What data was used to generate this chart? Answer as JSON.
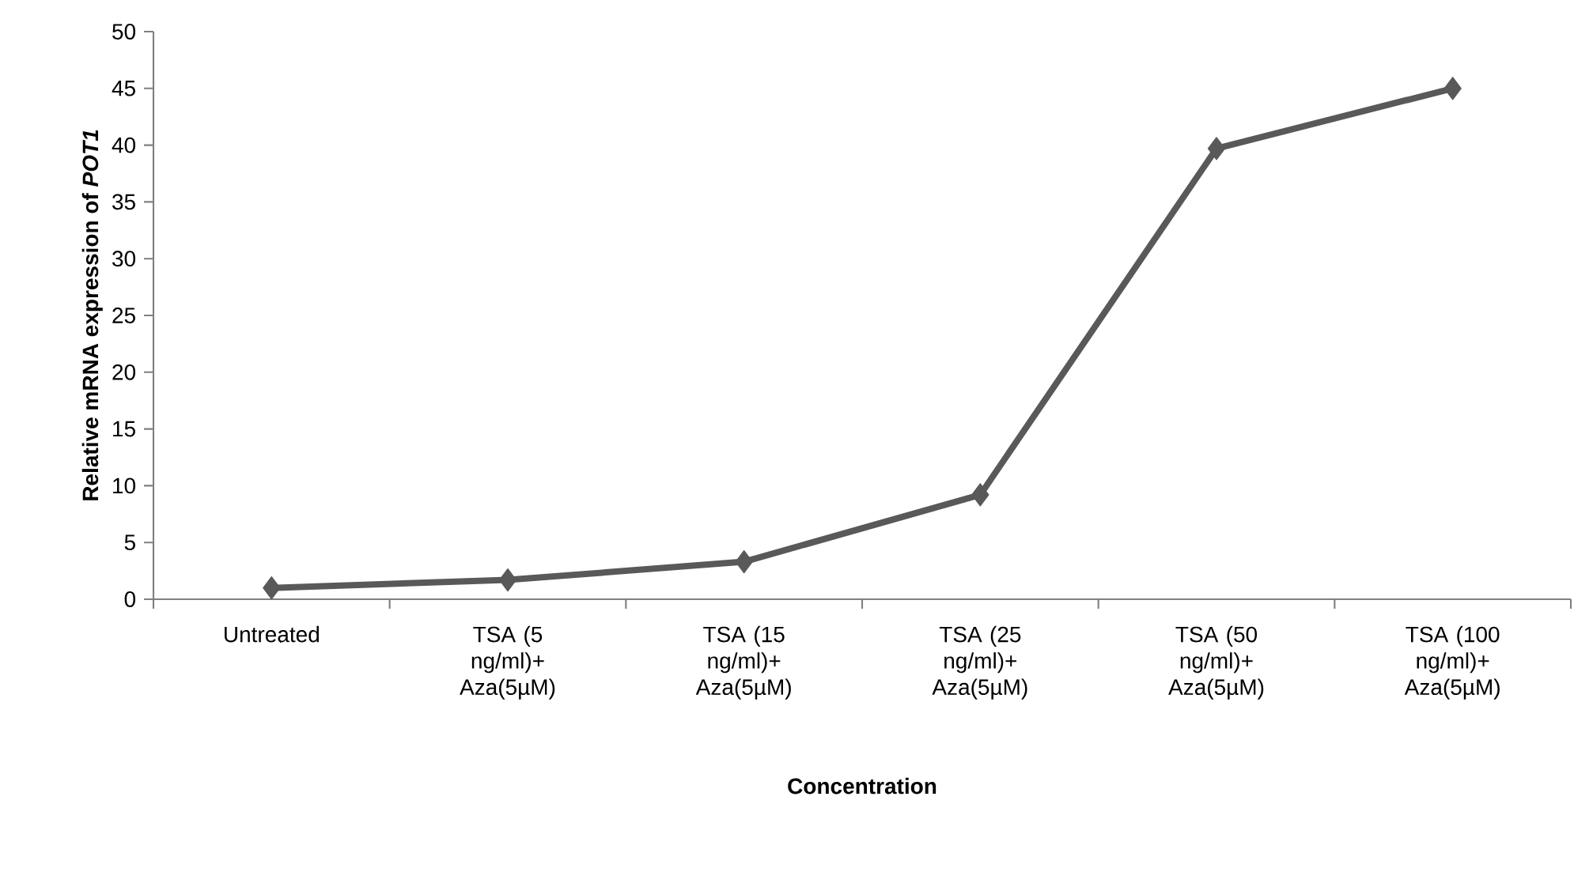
{
  "chart_data": {
    "type": "line",
    "xlabel": "Concentration",
    "ylabel": "Relative mRNA expression of *POT1*",
    "categories": [
      "Untreated",
      "TSA (5 ng/ml)+ Aza(5µM)",
      "TSA (15 ng/ml)+ Aza(5µM)",
      "TSA (25 ng/ml)+ Aza(5µM)",
      "TSA (50 ng/ml)+ Aza(5µM)",
      "TSA (100 ng/ml)+ Aza(5µM)"
    ],
    "series": [
      {
        "color": "#595959",
        "values": [
          1.0,
          1.7,
          3.3,
          9.2,
          39.7,
          45.0
        ]
      }
    ],
    "ylim": [
      0,
      50
    ],
    "yticks": [
      0,
      5,
      10,
      15,
      20,
      25,
      30,
      35,
      40,
      45,
      50
    ],
    "marker": "diamond",
    "line_style": "solid"
  }
}
